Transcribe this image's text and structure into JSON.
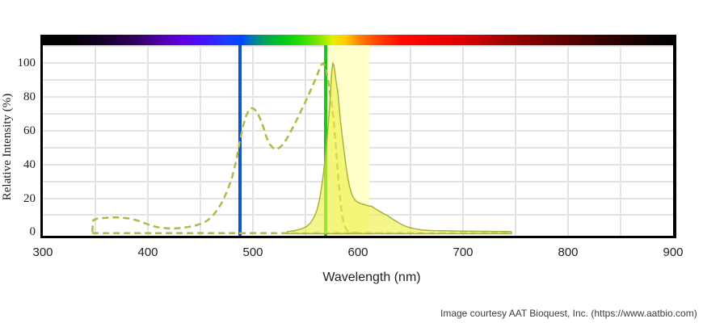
{
  "caption": "Image courtesy AAT Bioquest, Inc. (https://www.aatbio.com)",
  "chart_data": {
    "type": "area",
    "title": "",
    "xlabel": "Wavelength (nm)",
    "ylabel": "Relative Intensity (%)",
    "xlim": [
      300,
      900
    ],
    "ylim": [
      0,
      100
    ],
    "grid": "on",
    "legend": "none",
    "x_ticks": [
      300,
      400,
      500,
      600,
      700,
      800,
      900
    ],
    "y_ticks": [
      0,
      20,
      40,
      60,
      80,
      100
    ],
    "x_grid_nm": [
      350,
      400,
      450,
      500,
      550,
      600,
      650,
      700,
      750,
      800,
      850
    ],
    "y_grid_pct": [
      10,
      20,
      30,
      40,
      50,
      60,
      70,
      80,
      90,
      100,
      110
    ],
    "filter_band_nm": [
      569,
      611
    ],
    "filter_band_color": "#ffffcc",
    "laser_lines": [
      {
        "name": "blue-laser",
        "wavelength_nm": 488,
        "color": "#1253cf"
      },
      {
        "name": "green-laser",
        "wavelength_nm": 569,
        "color": "#1fc41f"
      }
    ],
    "series": [
      {
        "name": "excitation",
        "style": "dashed",
        "color": "#b2b944",
        "points": [
          [
            347,
            0
          ],
          [
            348,
            7
          ],
          [
            352,
            8
          ],
          [
            358,
            8.3
          ],
          [
            365,
            8.6
          ],
          [
            372,
            8.6
          ],
          [
            378,
            8.3
          ],
          [
            383,
            8
          ],
          [
            388,
            7.2
          ],
          [
            393,
            6.2
          ],
          [
            398,
            5
          ],
          [
            403,
            3.8
          ],
          [
            408,
            3
          ],
          [
            414,
            2.4
          ],
          [
            420,
            2.1
          ],
          [
            426,
            2.1
          ],
          [
            432,
            2.4
          ],
          [
            438,
            2.9
          ],
          [
            444,
            3.6
          ],
          [
            450,
            4.8
          ],
          [
            456,
            6.5
          ],
          [
            461,
            9
          ],
          [
            466,
            13
          ],
          [
            471,
            18
          ],
          [
            476,
            25
          ],
          [
            480,
            32
          ],
          [
            484,
            42
          ],
          [
            487,
            52
          ],
          [
            490,
            61
          ],
          [
            493,
            68
          ],
          [
            496,
            72
          ],
          [
            498,
            73.5
          ],
          [
            501,
            73
          ],
          [
            504,
            71
          ],
          [
            507,
            67
          ],
          [
            510,
            62
          ],
          [
            513,
            56
          ],
          [
            516,
            52
          ],
          [
            519,
            49.8
          ],
          [
            522,
            49
          ],
          [
            525,
            49.8
          ],
          [
            528,
            51.5
          ],
          [
            532,
            55
          ],
          [
            536,
            59.5
          ],
          [
            541,
            65.5
          ],
          [
            546,
            72
          ],
          [
            551,
            78.5
          ],
          [
            556,
            85.5
          ],
          [
            560,
            91
          ],
          [
            563,
            96
          ],
          [
            565,
            99
          ],
          [
            567,
            100
          ],
          [
            569,
            98
          ],
          [
            571,
            92
          ],
          [
            573,
            84
          ],
          [
            575,
            76
          ],
          [
            577,
            65
          ],
          [
            579,
            50
          ],
          [
            581,
            34
          ],
          [
            583,
            20
          ],
          [
            585,
            9.5
          ],
          [
            587,
            4
          ],
          [
            589,
            1.5
          ],
          [
            591,
            0.3
          ],
          [
            594,
            -0.3
          ],
          [
            598,
            -0.5
          ],
          [
            601,
            -0.6
          ]
        ]
      },
      {
        "name": "excitation-baseline",
        "style": "dashed",
        "color": "#b2b944",
        "points": [
          [
            347,
            -0.7
          ],
          [
            745,
            -0.7
          ]
        ]
      },
      {
        "name": "emission",
        "style": "filled",
        "color": "#aab23c",
        "fill": "rgba(238,240,70,0.62)",
        "points": [
          [
            533,
            0.3
          ],
          [
            540,
            0.8
          ],
          [
            546,
            1.8
          ],
          [
            551,
            3.2
          ],
          [
            555,
            5.5
          ],
          [
            558,
            8.5
          ],
          [
            561,
            13
          ],
          [
            563,
            18
          ],
          [
            565,
            25
          ],
          [
            567,
            34
          ],
          [
            569,
            45
          ],
          [
            571,
            58
          ],
          [
            573,
            74
          ],
          [
            574,
            85
          ],
          [
            575,
            95
          ],
          [
            576,
            100
          ],
          [
            577,
            99
          ],
          [
            578,
            95
          ],
          [
            579,
            90
          ],
          [
            581,
            82
          ],
          [
            583,
            68
          ],
          [
            585,
            57
          ],
          [
            586,
            52
          ],
          [
            588,
            42
          ],
          [
            590,
            33
          ],
          [
            592,
            27
          ],
          [
            594,
            22.5
          ],
          [
            596,
            20
          ],
          [
            598,
            18.5
          ],
          [
            600,
            17.5
          ],
          [
            603,
            16.8
          ],
          [
            606,
            16.2
          ],
          [
            610,
            15.5
          ],
          [
            613,
            15.2
          ],
          [
            616,
            14
          ],
          [
            620,
            12.5
          ],
          [
            624,
            11
          ],
          [
            628,
            9.8
          ],
          [
            632,
            8
          ],
          [
            636,
            6.5
          ],
          [
            640,
            5
          ],
          [
            644,
            3.8
          ],
          [
            648,
            2.8
          ],
          [
            652,
            2.2
          ],
          [
            656,
            1.7
          ],
          [
            660,
            1.3
          ],
          [
            666,
            1
          ],
          [
            672,
            0.8
          ],
          [
            680,
            0.7
          ],
          [
            690,
            0.6
          ],
          [
            700,
            0.5
          ],
          [
            710,
            0.45
          ],
          [
            720,
            0.4
          ],
          [
            730,
            0.35
          ],
          [
            740,
            0.3
          ],
          [
            746,
            0.2
          ]
        ]
      }
    ],
    "spectrum_bar": {
      "stops": [
        {
          "pos": 0,
          "color": "#000000"
        },
        {
          "pos": 4,
          "color": "#000000"
        },
        {
          "pos": 9,
          "color": "#140024"
        },
        {
          "pos": 14,
          "color": "#2e0055"
        },
        {
          "pos": 18,
          "color": "#4a009d"
        },
        {
          "pos": 22,
          "color": "#5f00e0"
        },
        {
          "pos": 26,
          "color": "#4315ff"
        },
        {
          "pos": 29,
          "color": "#1c3cff"
        },
        {
          "pos": 31.5,
          "color": "#0046ff"
        },
        {
          "pos": 33,
          "color": "#0073bb"
        },
        {
          "pos": 35,
          "color": "#00a060"
        },
        {
          "pos": 38,
          "color": "#00c81e"
        },
        {
          "pos": 41,
          "color": "#2bdd00"
        },
        {
          "pos": 44,
          "color": "#86e800"
        },
        {
          "pos": 46,
          "color": "#e8ee00"
        },
        {
          "pos": 48,
          "color": "#ffcc00"
        },
        {
          "pos": 50,
          "color": "#ff8800"
        },
        {
          "pos": 53,
          "color": "#ff4400"
        },
        {
          "pos": 57,
          "color": "#ff0800"
        },
        {
          "pos": 62,
          "color": "#f20000"
        },
        {
          "pos": 67,
          "color": "#d80000"
        },
        {
          "pos": 73,
          "color": "#a50000"
        },
        {
          "pos": 80,
          "color": "#700000"
        },
        {
          "pos": 88,
          "color": "#3c0000"
        },
        {
          "pos": 95,
          "color": "#150000"
        },
        {
          "pos": 100,
          "color": "#000000"
        }
      ]
    }
  }
}
